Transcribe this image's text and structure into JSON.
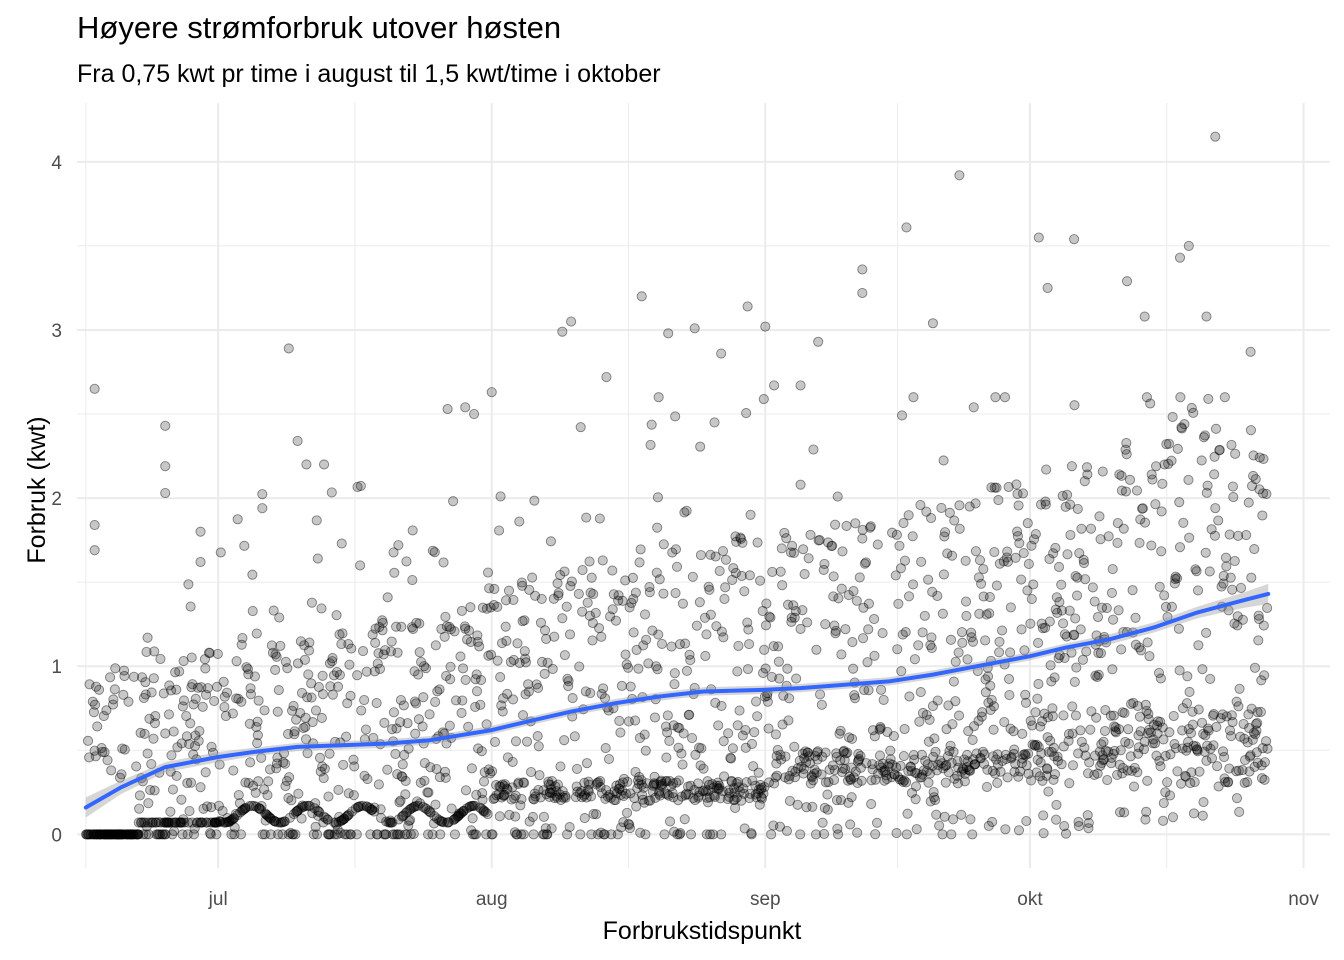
{
  "chart_data": {
    "type": "scatter",
    "title": "Høyere strømforbruk utover høsten",
    "subtitle": "Fra 0,75 kwt pr time i august til 1,5 kwt/time i oktober",
    "xlabel": "Forbrukstidspunkt",
    "ylabel": "Forbruk (kwt)",
    "x_axis_type": "date",
    "xlim": [
      "2022-06-15",
      "2022-11-04"
    ],
    "ylim": [
      -0.2,
      4.35
    ],
    "x_ticks": [
      {
        "date": "2022-07-01",
        "label": "jul"
      },
      {
        "date": "2022-08-01",
        "label": "aug"
      },
      {
        "date": "2022-09-01",
        "label": "sep"
      },
      {
        "date": "2022-10-01",
        "label": "okt"
      },
      {
        "date": "2022-11-01",
        "label": "nov"
      }
    ],
    "y_ticks": [
      0,
      1,
      2,
      3,
      4
    ],
    "grid": true,
    "legend": "none",
    "colors": {
      "points": "#000000",
      "smooth_line": "#3366ff",
      "confidence_band": "#999999",
      "grid": "#ebebeb",
      "tick_text": "#4d4d4d"
    },
    "points_note_values": {
      "period_start": "2022-06-16",
      "period_end": "2022-10-28"
    },
    "smooth_series": {
      "name": "",
      "points": [
        [
          "2022-06-16",
          0.16
        ],
        [
          "2022-06-20",
          0.28
        ],
        [
          "2022-06-25",
          0.4
        ],
        [
          "2022-07-01",
          0.46
        ],
        [
          "2022-07-05",
          0.49
        ],
        [
          "2022-07-10",
          0.52
        ],
        [
          "2022-07-15",
          0.53
        ],
        [
          "2022-07-20",
          0.54
        ],
        [
          "2022-07-25",
          0.56
        ],
        [
          "2022-08-01",
          0.62
        ],
        [
          "2022-08-05",
          0.67
        ],
        [
          "2022-08-10",
          0.73
        ],
        [
          "2022-08-15",
          0.78
        ],
        [
          "2022-08-20",
          0.82
        ],
        [
          "2022-08-25",
          0.85
        ],
        [
          "2022-09-01",
          0.86
        ],
        [
          "2022-09-05",
          0.87
        ],
        [
          "2022-09-10",
          0.89
        ],
        [
          "2022-09-15",
          0.91
        ],
        [
          "2022-09-20",
          0.95
        ],
        [
          "2022-09-25",
          1.0
        ],
        [
          "2022-10-01",
          1.06
        ],
        [
          "2022-10-05",
          1.11
        ],
        [
          "2022-10-10",
          1.16
        ],
        [
          "2022-10-15",
          1.23
        ],
        [
          "2022-10-20",
          1.32
        ],
        [
          "2022-10-25",
          1.39
        ],
        [
          "2022-10-28",
          1.43
        ]
      ],
      "band_halfwidth": [
        0.06,
        0.04,
        0.03,
        0.03,
        0.025,
        0.025,
        0.025,
        0.025,
        0.025,
        0.025,
        0.025,
        0.025,
        0.025,
        0.025,
        0.025,
        0.025,
        0.025,
        0.025,
        0.025,
        0.025,
        0.025,
        0.025,
        0.025,
        0.03,
        0.03,
        0.035,
        0.045,
        0.06
      ]
    },
    "scatter_outliers": [
      [
        "2022-06-17",
        2.65
      ],
      [
        "2022-06-17",
        1.84
      ],
      [
        "2022-06-17",
        1.69
      ],
      [
        "2022-06-25",
        2.43
      ],
      [
        "2022-06-25",
        2.19
      ],
      [
        "2022-06-25",
        2.03
      ],
      [
        "2022-06-29",
        1.8
      ],
      [
        "2022-07-09",
        2.89
      ],
      [
        "2022-07-10",
        2.34
      ],
      [
        "2022-07-11",
        2.2
      ],
      [
        "2022-07-13",
        2.2
      ],
      [
        "2022-07-27",
        2.53
      ],
      [
        "2022-07-29",
        2.54
      ],
      [
        "2022-07-30",
        2.5
      ],
      [
        "2022-08-01",
        2.63
      ],
      [
        "2022-08-09",
        2.99
      ],
      [
        "2022-08-10",
        3.05
      ],
      [
        "2022-08-14",
        2.72
      ],
      [
        "2022-08-18",
        3.2
      ],
      [
        "2022-08-21",
        2.98
      ],
      [
        "2022-08-24",
        3.01
      ],
      [
        "2022-08-27",
        2.86
      ],
      [
        "2022-08-30",
        3.14
      ],
      [
        "2022-09-01",
        3.02
      ],
      [
        "2022-09-02",
        2.67
      ],
      [
        "2022-09-05",
        2.67
      ],
      [
        "2022-09-07",
        2.93
      ],
      [
        "2022-09-12",
        3.36
      ],
      [
        "2022-09-12",
        3.22
      ],
      [
        "2022-09-17",
        3.61
      ],
      [
        "2022-09-20",
        3.04
      ],
      [
        "2022-09-23",
        3.92
      ],
      [
        "2022-10-02",
        3.55
      ],
      [
        "2022-10-03",
        3.25
      ],
      [
        "2022-10-06",
        3.54
      ],
      [
        "2022-10-12",
        3.29
      ],
      [
        "2022-10-14",
        3.08
      ],
      [
        "2022-10-18",
        3.43
      ],
      [
        "2022-10-19",
        3.5
      ],
      [
        "2022-10-21",
        3.08
      ],
      [
        "2022-10-22",
        4.15
      ],
      [
        "2022-10-26",
        2.87
      ],
      [
        "2022-06-23",
        1.17
      ],
      [
        "2022-06-29",
        1.62
      ],
      [
        "2022-07-06",
        1.94
      ],
      [
        "2022-07-15",
        1.73
      ],
      [
        "2022-08-02",
        2.01
      ],
      [
        "2022-09-05",
        2.08
      ]
    ]
  }
}
